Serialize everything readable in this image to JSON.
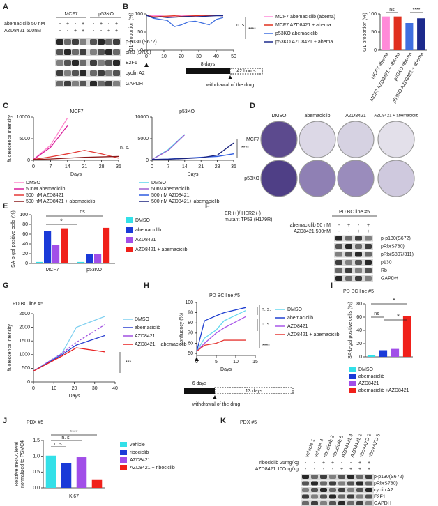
{
  "panels": {
    "A": {
      "label": "A",
      "groups": [
        "MCF7",
        "p53KO"
      ],
      "treatments": [
        {
          "name": "abemaciclib 50 nM",
          "signs": [
            "-",
            "+",
            "-",
            "+",
            "-",
            "+",
            "-",
            "+"
          ]
        },
        {
          "name": "AZD8421 500nM",
          "signs": [
            "-",
            "-",
            "+",
            "+",
            "-",
            "-",
            "+",
            "+"
          ]
        }
      ],
      "bands": [
        "p-p130 (S672)",
        "pRB (S780)",
        "E2F1",
        "cyclin A2",
        "GAPDH"
      ]
    },
    "B": {
      "label": "B",
      "line": {
        "type": "line",
        "ylabel": "G1 proportion (%)",
        "xlim": [
          0,
          50
        ],
        "xticks": [
          0,
          10,
          20,
          30,
          40,
          50
        ],
        "ylim": [
          0,
          100
        ],
        "yticks": [
          0,
          50,
          100
        ],
        "x": [
          0,
          4,
          8,
          12,
          16,
          20,
          24,
          28,
          32,
          36,
          40,
          44
        ],
        "series": [
          {
            "name": "MCF7 abemaciclib (abema)",
            "color": "#ff8ad8",
            "values": [
              96,
              95,
              95,
              93,
              94,
              96,
              95,
              95,
              94,
              95,
              96,
              95
            ]
          },
          {
            "name": "MCF7 AZD8421 + abema",
            "color": "#e0301e",
            "values": [
              96,
              92,
              93,
              94,
              95,
              93,
              94,
              95,
              96,
              95,
              96,
              95
            ]
          },
          {
            "name": "p53KO  abemaciclib",
            "color": "#3f6fe0",
            "values": [
              96,
              88,
              85,
              82,
              65,
              70,
              78,
              80,
              75,
              70,
              85,
              90
            ]
          },
          {
            "name": "p53KO AZD8421 + abema",
            "color": "#1c2a8c",
            "values": [
              96,
              90,
              92,
              90,
              91,
              92,
              93,
              92,
              93,
              94,
              95,
              95
            ]
          }
        ],
        "annotations": [
          "n. s.",
          "****"
        ]
      },
      "timeline": {
        "on": "8 days",
        "off": "42 hours",
        "note": "withdrawal of the drug"
      },
      "bar": {
        "type": "bar",
        "ylabel": "G1 proportion (%)",
        "ylim": [
          0,
          100
        ],
        "yticks": [
          0,
          50,
          100
        ],
        "categories": [
          "MCF7 abema",
          "MCF7 AZD8421 + abema",
          "p53KO abema",
          "p53KO AZD8421 + abema"
        ],
        "values": [
          93,
          93,
          75,
          88
        ],
        "colors": [
          "#ff8ad8",
          "#e0301e",
          "#3f6fe0",
          "#1c2a8c"
        ],
        "annotations": [
          "ns",
          "****"
        ]
      }
    },
    "C": {
      "label": "C",
      "charts": [
        {
          "type": "line",
          "title": "MCF7",
          "ylabel": "fluorescence Intensity",
          "xlabel": "Days",
          "xlim": [
            0,
            35
          ],
          "xticks": [
            0,
            7,
            14,
            21,
            28,
            35
          ],
          "ylim": [
            0,
            10000
          ],
          "yticks": [
            0,
            5000,
            10000
          ],
          "x": [
            0,
            7,
            14,
            21,
            28,
            35
          ],
          "series": [
            {
              "name": "DMSO",
              "color": "#ff88cc",
              "values": [
                200,
                3500,
                9800,
                null,
                null,
                null
              ]
            },
            {
              "name": "50nM abemaciclib",
              "color": "#d81b9a",
              "values": [
                200,
                3000,
                8000,
                null,
                null,
                null
              ]
            },
            {
              "name": "500 nM AZD8421",
              "color": "#e53935",
              "values": [
                200,
                800,
                1500,
                2300,
                1500,
                500
              ]
            },
            {
              "name": "500 nM AZD8421 + abemaciclib",
              "color": "#8b1a1a",
              "values": [
                200,
                300,
                500,
                700,
                800,
                900
              ]
            }
          ],
          "annotations": [
            "n. s."
          ]
        },
        {
          "type": "line",
          "title": "p53KO",
          "xlabel": "Days",
          "xlim": [
            0,
            35
          ],
          "xticks": [
            0,
            7,
            14,
            21,
            28,
            35
          ],
          "ylim": [
            0,
            10000
          ],
          "yticks": [
            0,
            5000,
            10000
          ],
          "x": [
            0,
            7,
            14,
            21,
            28,
            35
          ],
          "series": [
            {
              "name": "DMSO",
              "color": "#5ad6ea",
              "values": [
                200,
                2500,
                6000,
                null,
                null,
                null
              ]
            },
            {
              "name": "50nMabemaciclib",
              "color": "#9c5fd0",
              "values": [
                200,
                2300,
                5900,
                null,
                null,
                null
              ]
            },
            {
              "name": "500 nM AZD8421",
              "color": "#2e5be0",
              "values": [
                200,
                300,
                500,
                700,
                900,
                1500
              ]
            },
            {
              "name": "500 nM AZD8421+ abemaciclib",
              "color": "#1a237e",
              "values": [
                200,
                250,
                400,
                600,
                1200,
                4000
              ]
            }
          ],
          "annotations": [
            "****"
          ]
        }
      ]
    },
    "D": {
      "label": "D",
      "columns": [
        "DMSO",
        "abemaciclib",
        "AZD8421",
        "AZD8421 + abemaciclib"
      ],
      "rows": [
        "MCF7",
        "p53KO"
      ]
    },
    "E": {
      "label": "E",
      "type": "grouped_bar",
      "ylabel": "SA-b-gal positive cells (%)",
      "ylim": [
        0,
        100
      ],
      "yticks": [
        0,
        20,
        40,
        60,
        80,
        100
      ],
      "categories": [
        "MCF7",
        "p53KO"
      ],
      "series": [
        {
          "name": "DMSO",
          "color": "#33e0e8",
          "values": [
            3,
            3
          ]
        },
        {
          "name": "abemaciclib",
          "color": "#1a3ad8",
          "values": [
            66,
            20
          ]
        },
        {
          "name": "AZD8421",
          "color": "#a14ee8",
          "values": [
            38,
            20
          ]
        },
        {
          "name": "AZD8421 + abemaciclib",
          "color": "#f0201a",
          "values": [
            72,
            73
          ]
        }
      ],
      "annotations": [
        "*",
        "ns"
      ]
    },
    "F": {
      "label": "F",
      "notes": [
        "ER (+)/ HER2 (-)",
        "mutant TP53 (H179R)"
      ],
      "title": "PD BC line #5",
      "treatments": [
        {
          "name": "abemaciclib 50 nM",
          "signs": [
            "-",
            "+",
            "-",
            "+"
          ]
        },
        {
          "name": "AZD8421 500nM",
          "signs": [
            "-",
            "-",
            "+",
            "+"
          ]
        }
      ],
      "bands": [
        "p-p130(S672)",
        "pRb(S780)",
        "pRb(S807/811)",
        "p130",
        "Rb",
        "GAPDH"
      ]
    },
    "G": {
      "label": "G",
      "type": "line",
      "title": "PD BC line #5",
      "ylabel": "fluorescence Intensity",
      "xlabel": "Days",
      "xlim": [
        0,
        40
      ],
      "xticks": [
        0,
        10,
        20,
        30,
        40
      ],
      "ylim": [
        0,
        2500
      ],
      "yticks": [
        0,
        500,
        1000,
        1500,
        2000,
        2500
      ],
      "x": [
        0,
        14,
        21,
        35
      ],
      "series": [
        {
          "name": "DMSO",
          "color": "#7fd0f0",
          "values": [
            400,
            1050,
            2000,
            2400
          ]
        },
        {
          "name": "abemaciclib",
          "color": "#2a3fd0",
          "values": [
            400,
            1000,
            1350,
            1700
          ]
        },
        {
          "name": "AZD8421",
          "color": "#a050e0",
          "dashed": true,
          "values": [
            400,
            1050,
            1450,
            2100
          ]
        },
        {
          "name": "AZD8421 + abemaciclib",
          "color": "#e82020",
          "values": [
            400,
            950,
            1250,
            1100
          ]
        }
      ],
      "annotations": [
        "***"
      ]
    },
    "H": {
      "label": "H",
      "type": "line",
      "title": "PD BC line #5",
      "ylabel": "confluency (%)",
      "xlabel": "Days",
      "xlim": [
        0,
        15
      ],
      "xticks": [
        0,
        5,
        10,
        15
      ],
      "ylim": [
        48,
        100
      ],
      "yticks": [
        50,
        60,
        70,
        80,
        90,
        100
      ],
      "x": [
        0,
        2,
        5,
        7,
        12.5
      ],
      "series": [
        {
          "name": "DMSO",
          "color": "#66d9ef",
          "values": [
            52,
            65,
            73,
            82,
            92
          ]
        },
        {
          "name": "abemaciclib",
          "color": "#1f3fd0",
          "values": [
            52,
            82,
            87,
            90,
            95
          ]
        },
        {
          "name": "AZD8421",
          "color": "#a855e8",
          "values": [
            52,
            60,
            70,
            75,
            86
          ]
        },
        {
          "name": "AZD8421 + abemaciclib",
          "color": "#e53935",
          "values": [
            52,
            58,
            60,
            63,
            63
          ]
        }
      ],
      "annotations": [
        "n. s.",
        "n. s.",
        "****"
      ],
      "timeline": {
        "on": "6 days",
        "off": "13 days",
        "note": "withdrawal of the drug"
      }
    },
    "I": {
      "label": "I",
      "type": "bar",
      "title": "PD BC line #5",
      "ylabel": "SA-b-gal positive cells (%)",
      "ylim": [
        0,
        80
      ],
      "yticks": [
        0,
        20,
        40,
        60,
        80
      ],
      "categories": [
        "DMSO",
        "abemaciclib",
        "AZD8421",
        "abemaciclib +AZD8421"
      ],
      "values": [
        3,
        10,
        12,
        62
      ],
      "colors": [
        "#33e0e8",
        "#1a3ad8",
        "#a14ee8",
        "#f0201a"
      ],
      "annotations": [
        "*",
        "ns",
        "*"
      ]
    },
    "J": {
      "label": "J",
      "type": "bar",
      "title": "PDX #5",
      "ylabel": [
        "Relative mRNA level",
        "normalized to PSMC4"
      ],
      "xlabel": "Ki67",
      "ylim": [
        0,
        1.5
      ],
      "yticks": [
        {
          "value": 0,
          "label": "0.0"
        },
        {
          "value": 0.5,
          "label": "0.5"
        },
        {
          "value": 1,
          "label": "1.0"
        },
        {
          "value": 1.5,
          "label": "1.5"
        }
      ],
      "categories": [
        "vehicle",
        "ribociclib",
        "AZD8421",
        "AZD8421 + ribociclib"
      ],
      "values": [
        1.02,
        0.78,
        0.97,
        0.27
      ],
      "colors": [
        "#33e0e8",
        "#1a3ad8",
        "#a14ee8",
        "#f0201a"
      ],
      "annotations": [
        "****",
        "n. s.",
        "n. s."
      ]
    },
    "K": {
      "label": "K",
      "title": "PDX #5",
      "lanes": [
        "vehicle 1",
        "vehicle 4",
        "ribociclib 2",
        "ribociclib 5",
        "AZD8421 4",
        "AZD8421 2",
        "ribo+AZD 2",
        "ribo+AZD 5"
      ],
      "treatments": [
        {
          "name": "ribociclib 25mg/kg",
          "signs": [
            "-",
            "-",
            "+",
            "+",
            "-",
            "-",
            "+",
            "+"
          ]
        },
        {
          "name": "AZD8421 100mg/kg",
          "signs": [
            "-",
            "-",
            "-",
            "-",
            "+",
            "+",
            "+",
            "+"
          ]
        }
      ],
      "bands": [
        "p-p130(S672)",
        "pRb(S780)",
        "cyclin A2",
        "E2F1",
        "GAPDH"
      ]
    }
  }
}
